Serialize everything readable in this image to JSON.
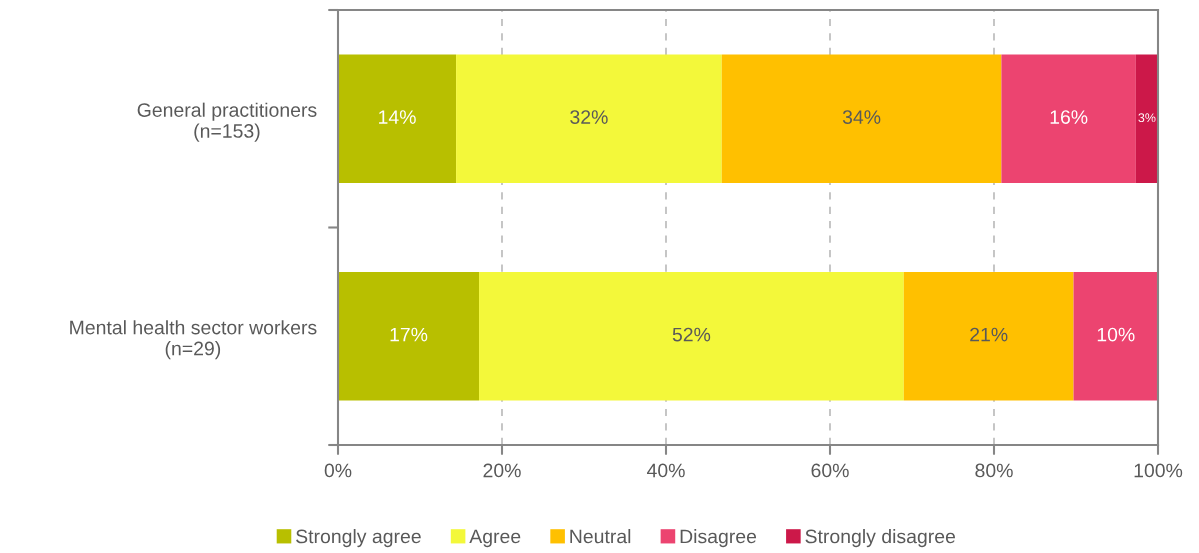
{
  "chart_data": {
    "type": "bar",
    "orientation": "horizontal",
    "stacked": true,
    "categories": [
      "General practitioners\n(n=153)",
      "Mental health sector workers\n(n=29)"
    ],
    "series": [
      {
        "name": "Strongly agree",
        "color": "#b8bf00",
        "values": [
          14.4,
          17.2
        ],
        "value_labels": [
          "14%",
          "17%"
        ]
      },
      {
        "name": "Agree",
        "color": "#f3f83a",
        "values": [
          32.4,
          51.8
        ],
        "value_labels": [
          "32%",
          "52%"
        ]
      },
      {
        "name": "Neutral",
        "color": "#ffc000",
        "values": [
          34.1,
          20.7
        ],
        "value_labels": [
          "34%",
          "21%"
        ]
      },
      {
        "name": "Disagree",
        "color": "#ec4470",
        "values": [
          16.4,
          10.3
        ],
        "value_labels": [
          "16%",
          "10%"
        ]
      },
      {
        "name": "Strongly disagree",
        "color": "#cc1849",
        "values": [
          2.7,
          null
        ],
        "value_labels": [
          "3%",
          null
        ]
      }
    ],
    "xlim": [
      0,
      100
    ],
    "xticks": [
      {
        "value": 0,
        "label": "0%"
      },
      {
        "value": 20,
        "label": "20%"
      },
      {
        "value": 40,
        "label": "40%"
      },
      {
        "value": 60,
        "label": "60%"
      },
      {
        "value": 80,
        "label": "80%"
      },
      {
        "value": 100,
        "label": "100%"
      }
    ],
    "grid": "x",
    "legend": "bottom"
  }
}
